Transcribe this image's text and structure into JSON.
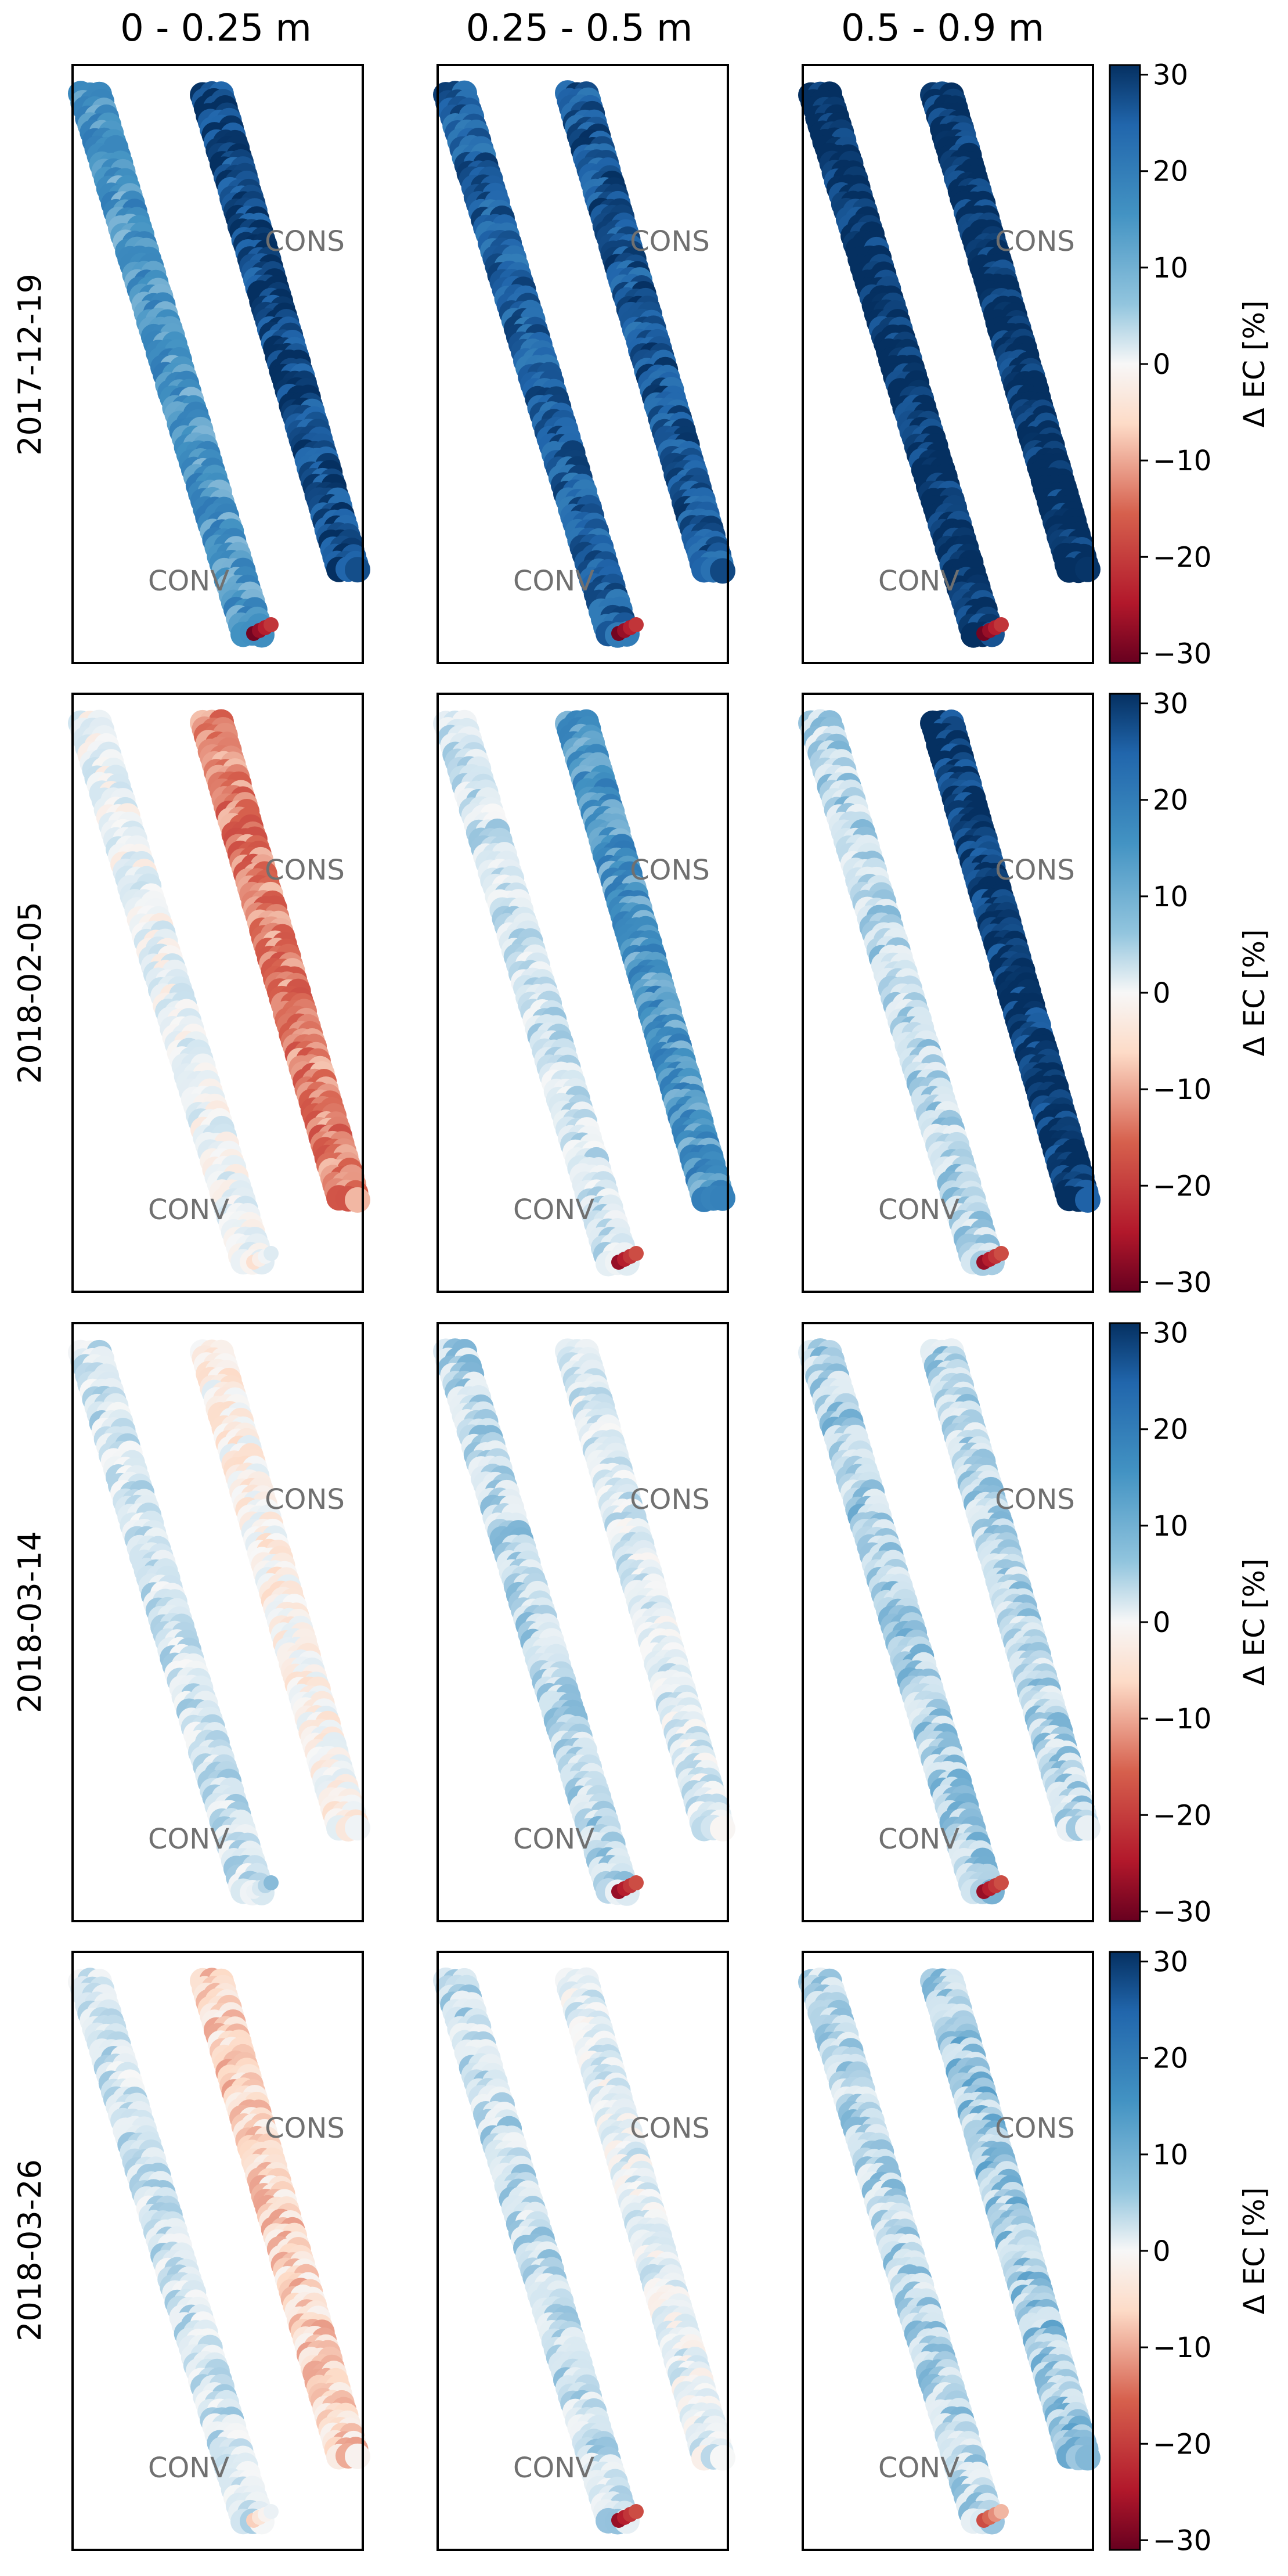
{
  "chart_data": {
    "type": "heatmap",
    "title": "",
    "depth_columns": [
      "0 - 0.25 m",
      "0.25 - 0.5 m",
      "0.5 - 0.9 m"
    ],
    "dates": [
      "2017-12-19",
      "2018-02-05",
      "2018-03-14",
      "2018-03-26"
    ],
    "strip_labels": {
      "left": "CONV",
      "right": "CONS"
    },
    "colorbar": {
      "label": "Δ EC [%]",
      "colormap": "RdBu",
      "range": [
        -31,
        31
      ],
      "ticks": [
        30,
        20,
        10,
        0,
        -10,
        -20,
        -30
      ],
      "tick_labels": [
        "30",
        "20",
        "10",
        "0",
        "−10",
        "−20",
        "−30"
      ]
    },
    "panels": [
      [
        {
          "CONV": 16,
          "CONS": 28,
          "note": "low-row edge ~ -30"
        },
        {
          "CONV": 25,
          "CONS": 26,
          "note": "low-row edge ~ -30"
        },
        {
          "CONV": 31,
          "CONS": 31,
          "note": "low-row edge ~ -30"
        }
      ],
      [
        {
          "CONV": 2,
          "CONS": -13,
          "note": "low-row edge ~ -5"
        },
        {
          "CONV": 5,
          "CONS": 16,
          "note": "low-row edge ~ -27"
        },
        {
          "CONV": 7,
          "CONS": 30,
          "note": "low-row edge ~ -27"
        }
      ],
      [
        {
          "CONV": 5,
          "CONS": -1,
          "note": "low-row edge ~ 2"
        },
        {
          "CONV": 7,
          "CONS": 4,
          "note": "low-row edge ~ -27"
        },
        {
          "CONV": 8,
          "CONS": 7,
          "note": "low-row edge ~ -27"
        }
      ],
      [
        {
          "CONV": 5,
          "CONS": -6,
          "note": "low-row edge ~ -7"
        },
        {
          "CONV": 6,
          "CONS": 3,
          "note": "low-row edge ~ -27"
        },
        {
          "CONV": 7,
          "CONS": 9,
          "note": "low-row edge ~ -18"
        }
      ]
    ]
  }
}
